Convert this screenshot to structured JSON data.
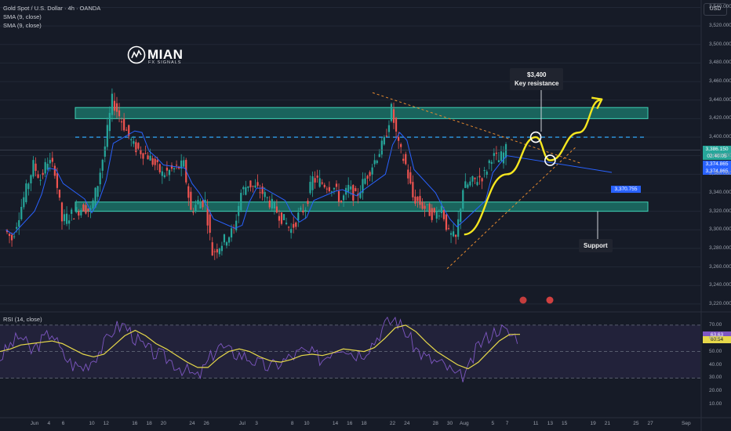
{
  "header": {
    "symbol_line": "Gold Spot / U.S. Dollar · 4h · OANDA",
    "indicator1": "SMA (9, close)",
    "indicator2": "SMA (9, close)"
  },
  "currency_button": "USD",
  "logo": {
    "name": "MIAN",
    "subtitle": "FX SIGNALS"
  },
  "annotations": {
    "resistance_price": "$3,400",
    "resistance_label": "Key resistance",
    "support_label": "Support"
  },
  "price_tags": {
    "last": "3,386.150",
    "countdown": "02:40:05",
    "sma1": "3,374.865",
    "sma2": "3,374.865",
    "target": "3,370.755"
  },
  "rsi": {
    "label": "RSI (14, close)",
    "value_a": "63.63",
    "value_b": "60.54",
    "ticks": [
      "70.00",
      "60.00",
      "50.00",
      "40.00",
      "30.00",
      "20.00",
      "10.00"
    ]
  },
  "colors": {
    "background": "#161b27",
    "bull": "#26a69a",
    "bear": "#ef5350",
    "zone": "#1fa08a",
    "sma": "#2962ff",
    "projection": "#f5e61f",
    "rsi_line": "#7e57c2",
    "rsi_ma": "#e6d84a"
  },
  "chart_data": {
    "type": "candlestick",
    "title": "Gold Spot / U.S. Dollar · 4h · OANDA",
    "y_axis_ticks": [
      "3,540.000",
      "3,520.000",
      "3,500.000",
      "3,480.000",
      "3,460.000",
      "3,440.000",
      "3,420.000",
      "3,400.000",
      "3,380.000",
      "3,360.000",
      "3,340.000",
      "3,320.000",
      "3,300.000",
      "3,280.000",
      "3,260.000",
      "3,240.000",
      "3,220.000"
    ],
    "ylim": [
      3214,
      3548
    ],
    "x_axis_ticks": [
      "Jun",
      "4",
      "6",
      "10",
      "12",
      "16",
      "18",
      "20",
      "24",
      "26",
      "Jul",
      "3",
      "8",
      "10",
      "14",
      "16",
      "18",
      "22",
      "24",
      "28",
      "30",
      "Aug",
      "5",
      "7",
      "11",
      "13",
      "15",
      "19",
      "21",
      "25",
      "27",
      "Sep"
    ],
    "price_path": [
      {
        "date": "May 29",
        "close": 3300
      },
      {
        "date": "May 30",
        "close": 3290
      },
      {
        "date": "Jun 2",
        "close": 3370
      },
      {
        "date": "Jun 3",
        "close": 3355
      },
      {
        "date": "Jun 4",
        "close": 3375
      },
      {
        "date": "Jun 5",
        "close": 3365
      },
      {
        "date": "Jun 6",
        "close": 3310
      },
      {
        "date": "Jun 9",
        "close": 3325
      },
      {
        "date": "Jun 10",
        "close": 3320
      },
      {
        "date": "Jun 11",
        "close": 3350
      },
      {
        "date": "Jun 12",
        "close": 3390
      },
      {
        "date": "Jun 13",
        "close": 3440
      },
      {
        "date": "Jun 16",
        "close": 3390
      },
      {
        "date": "Jun 17",
        "close": 3385
      },
      {
        "date": "Jun 18",
        "close": 3380
      },
      {
        "date": "Jun 19",
        "close": 3370
      },
      {
        "date": "Jun 20",
        "close": 3360
      },
      {
        "date": "Jun 23",
        "close": 3370
      },
      {
        "date": "Jun 24",
        "close": 3320
      },
      {
        "date": "Jun 25",
        "close": 3330
      },
      {
        "date": "Jun 26",
        "close": 3330
      },
      {
        "date": "Jun 27",
        "close": 3275
      },
      {
        "date": "Jun 30",
        "close": 3300
      },
      {
        "date": "Jul 1",
        "close": 3340
      },
      {
        "date": "Jul 2",
        "close": 3350
      },
      {
        "date": "Jul 3",
        "close": 3345
      },
      {
        "date": "Jul 4",
        "close": 3340
      },
      {
        "date": "Jul 7",
        "close": 3310
      },
      {
        "date": "Jul 8",
        "close": 3300
      },
      {
        "date": "Jul 9",
        "close": 3315
      },
      {
        "date": "Jul 10",
        "close": 3325
      },
      {
        "date": "Jul 11",
        "close": 3355
      },
      {
        "date": "Jul 14",
        "close": 3345
      },
      {
        "date": "Jul 15",
        "close": 3330
      },
      {
        "date": "Jul 16",
        "close": 3345
      },
      {
        "date": "Jul 17",
        "close": 3335
      },
      {
        "date": "Jul 18",
        "close": 3350
      },
      {
        "date": "Jul 21",
        "close": 3395
      },
      {
        "date": "Jul 22",
        "close": 3430
      },
      {
        "date": "Jul 23",
        "close": 3390
      },
      {
        "date": "Jul 24",
        "close": 3370
      },
      {
        "date": "Jul 25",
        "close": 3335
      },
      {
        "date": "Jul 28",
        "close": 3315
      },
      {
        "date": "Jul 29",
        "close": 3325
      },
      {
        "date": "Jul 30",
        "close": 3295
      },
      {
        "date": "Jul 31",
        "close": 3290
      },
      {
        "date": "Aug 1",
        "close": 3345
      },
      {
        "date": "Aug 4",
        "close": 3360
      },
      {
        "date": "Aug 5",
        "close": 3380
      },
      {
        "date": "Aug 6",
        "close": 3375
      },
      {
        "date": "Aug 7",
        "close": 3386
      }
    ],
    "zones": [
      {
        "name": "resistance",
        "low": 3420,
        "high": 3432
      },
      {
        "name": "support",
        "low": 3320,
        "high": 3330
      }
    ],
    "levels": [
      {
        "value": 3400,
        "style": "dashed"
      }
    ],
    "projection": [
      {
        "date": "Aug 1",
        "value": 3295
      },
      {
        "date": "Aug 7",
        "value": 3360
      },
      {
        "date": "Aug 11",
        "value": 3400
      },
      {
        "date": "Aug 13",
        "value": 3375
      },
      {
        "date": "Aug 17",
        "value": 3405
      },
      {
        "date": "Aug 20",
        "value": 3440
      }
    ],
    "rsi": {
      "label": "RSI (14, close)",
      "ylim": [
        0,
        80
      ],
      "levels": [
        70,
        50,
        30
      ],
      "values": [
        45,
        55,
        62,
        50,
        58,
        65,
        48,
        40,
        38,
        45,
        55,
        68,
        70,
        60,
        52,
        48,
        45,
        40,
        35,
        30,
        42,
        55,
        50,
        48,
        45,
        40,
        38,
        42,
        46,
        50,
        48,
        44,
        52,
        55,
        48,
        50,
        58,
        70,
        75,
        65,
        52,
        45,
        42,
        38,
        30,
        35,
        55,
        62,
        68,
        63,
        61
      ],
      "ma_values": [
        50,
        52,
        55,
        56,
        57,
        58,
        56,
        52,
        48,
        46,
        48,
        55,
        62,
        66,
        62,
        56,
        52,
        47,
        42,
        38,
        38,
        45,
        50,
        52,
        50,
        46,
        43,
        42,
        44,
        47,
        48,
        47,
        49,
        52,
        51,
        50,
        53,
        60,
        68,
        70,
        65,
        57,
        50,
        45,
        40,
        37,
        42,
        50,
        58,
        63,
        63
      ]
    }
  }
}
